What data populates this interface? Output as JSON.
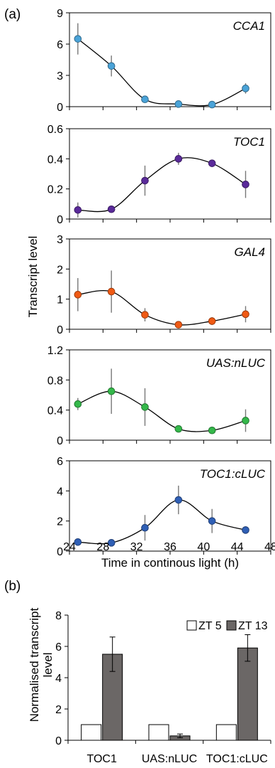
{
  "figure": {
    "panel_a_label": "(a)",
    "panel_b_label": "(b)",
    "panel_a_ylabel": "Transcript level",
    "panel_a_xlabel": "Time in continous light (h)",
    "panel_a_xticks": [
      "24",
      "28",
      "32",
      "36",
      "40",
      "44",
      "48"
    ],
    "panel_b_ylabel_line1": "Normalised transcript",
    "panel_b_ylabel_line2": "level"
  },
  "chart_data": [
    {
      "type": "line",
      "title": "CCA1",
      "x": [
        25,
        29,
        33,
        37,
        41,
        45
      ],
      "y": [
        6.5,
        3.9,
        0.7,
        0.25,
        0.2,
        1.75
      ],
      "err": [
        1.5,
        1.0,
        0.3,
        0.15,
        0.2,
        0.5
      ],
      "ylim": [
        0,
        9
      ],
      "yticks": [
        "0",
        "3",
        "6",
        "9"
      ],
      "xlim": [
        24,
        48
      ],
      "color": "#4aa3d8"
    },
    {
      "type": "line",
      "title": "TOC1",
      "x": [
        25,
        29,
        33,
        37,
        41,
        45
      ],
      "y": [
        0.06,
        0.065,
        0.255,
        0.4,
        0.37,
        0.23
      ],
      "err": [
        0.05,
        0.02,
        0.1,
        0.04,
        0.02,
        0.09
      ],
      "ylim": [
        0,
        0.6
      ],
      "yticks": [
        "0",
        "0.2",
        "0.4",
        "0.6"
      ],
      "xlim": [
        24,
        48
      ],
      "color": "#5a2a9a"
    },
    {
      "type": "line",
      "title": "GAL4",
      "x": [
        25,
        29,
        33,
        37,
        41,
        45
      ],
      "y": [
        1.15,
        1.25,
        0.48,
        0.15,
        0.27,
        0.5
      ],
      "err": [
        0.55,
        0.7,
        0.22,
        0.05,
        0.13,
        0.27
      ],
      "ylim": [
        0,
        3
      ],
      "yticks": [
        "0",
        "1",
        "2",
        "3"
      ],
      "xlim": [
        24,
        48
      ],
      "color": "#f05a14"
    },
    {
      "type": "line",
      "title": "UAS:nLUC",
      "x": [
        25,
        29,
        33,
        37,
        41,
        45
      ],
      "y": [
        0.48,
        0.65,
        0.44,
        0.15,
        0.13,
        0.26
      ],
      "err": [
        0.08,
        0.3,
        0.25,
        0.03,
        0.03,
        0.15
      ],
      "ylim": [
        0,
        1.2
      ],
      "yticks": [
        "0",
        "0.4",
        "0.8",
        "1.2"
      ],
      "xlim": [
        24,
        48
      ],
      "color": "#34b84a"
    },
    {
      "type": "line",
      "title": "TOC1:cLUC",
      "x": [
        25,
        29,
        33,
        37,
        41,
        45
      ],
      "y": [
        0.6,
        0.55,
        1.55,
        3.4,
        2.0,
        1.4
      ],
      "err": [
        0.2,
        0.15,
        0.85,
        0.95,
        0.8,
        0.25
      ],
      "ylim": [
        0,
        6
      ],
      "yticks": [
        "0",
        "2",
        "4",
        "6"
      ],
      "xlim": [
        24,
        48
      ],
      "color": "#2f5fb5"
    },
    {
      "type": "bar",
      "categories": [
        "TOC1",
        "UAS:nLUC",
        "TOC1:cLUC"
      ],
      "series": [
        {
          "name": "ZT 5",
          "values": [
            1,
            1,
            1
          ],
          "err": [
            0,
            0,
            0
          ],
          "color": "#ffffff"
        },
        {
          "name": "ZT 13",
          "values": [
            5.5,
            0.28,
            5.9
          ],
          "err": [
            1.1,
            0.12,
            0.85
          ],
          "color": "#6b6766"
        }
      ],
      "ylim": [
        0,
        8
      ],
      "yticks": [
        "0",
        "2",
        "4",
        "6",
        "8"
      ],
      "legend": "top-right"
    }
  ]
}
